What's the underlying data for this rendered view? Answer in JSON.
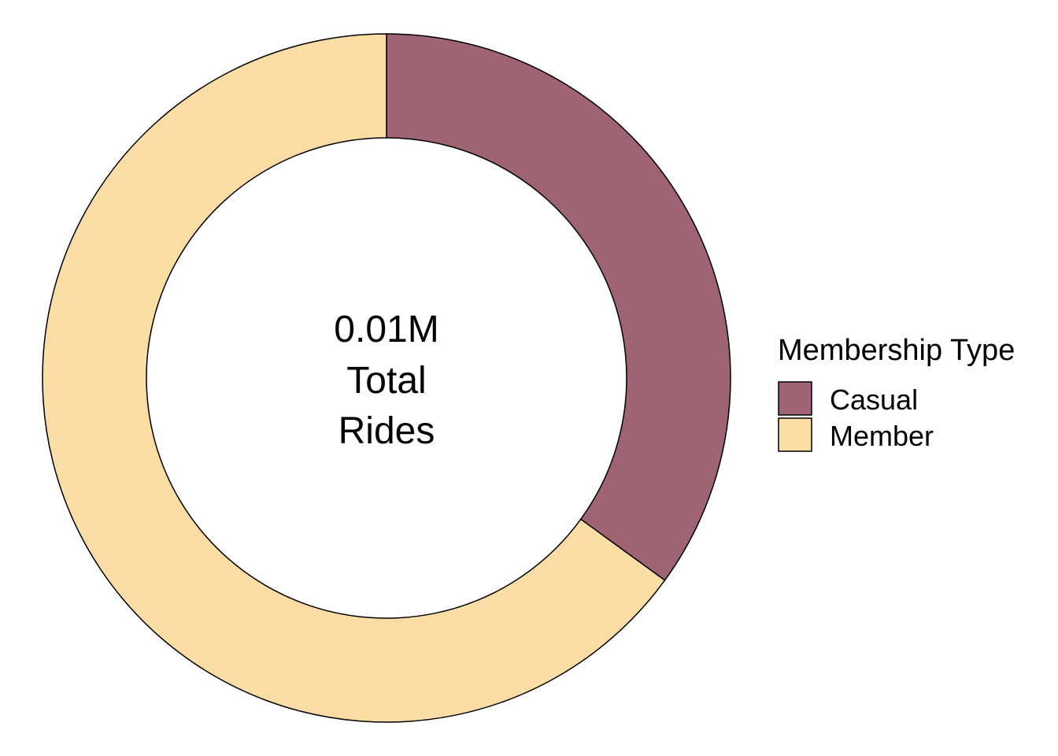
{
  "chart_data": {
    "type": "pie",
    "variant": "donut",
    "center_label": [
      "0.01M",
      "Total",
      "Rides"
    ],
    "legend": {
      "title": "Membership Type",
      "placement": "right"
    },
    "slices": [
      {
        "label": "Casual",
        "value": 35,
        "color": "#9E6474"
      },
      {
        "label": "Member",
        "value": 65,
        "color": "#F9DDA4"
      }
    ],
    "start_angle": "12 o'clock",
    "direction": "clockwise"
  }
}
